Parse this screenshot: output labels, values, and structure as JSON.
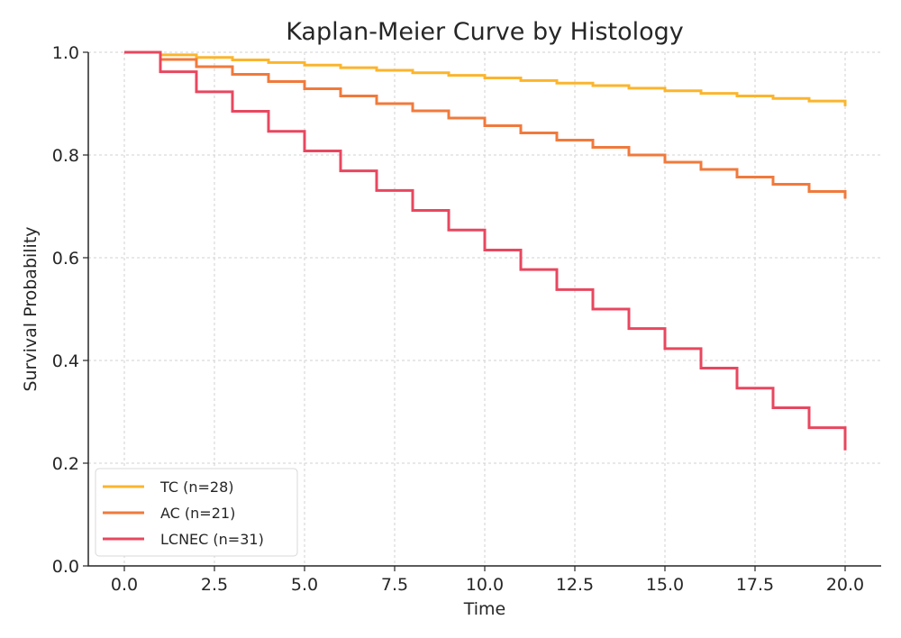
{
  "chart_data": {
    "type": "line",
    "subtype": "step",
    "title": "Kaplan-Meier Curve by Histology",
    "xlabel": "Time",
    "ylabel": "Survival Probability",
    "xlim": [
      -1,
      21
    ],
    "ylim": [
      0,
      1.0
    ],
    "xticks": [
      0,
      2.5,
      5,
      7.5,
      10,
      12.5,
      15,
      17.5,
      20
    ],
    "xtick_labels": [
      "0.0",
      "2.5",
      "5.0",
      "7.5",
      "10.0",
      "12.5",
      "15.0",
      "17.5",
      "20.0"
    ],
    "yticks": [
      0,
      0.2,
      0.4,
      0.6,
      0.8,
      1.0
    ],
    "ytick_labels": [
      "0.0",
      "0.2",
      "0.4",
      "0.6",
      "0.8",
      "1.0"
    ],
    "grid": true,
    "legend_position": "lower-left",
    "x": [
      0,
      1,
      2,
      3,
      4,
      5,
      6,
      7,
      8,
      9,
      10,
      11,
      12,
      13,
      14,
      15,
      16,
      17,
      18,
      19,
      20
    ],
    "series": [
      {
        "name": "TC (n=28)",
        "color": "#fbb52d",
        "values": [
          1.0,
          0.995,
          0.99,
          0.985,
          0.98,
          0.975,
          0.97,
          0.965,
          0.96,
          0.955,
          0.95,
          0.945,
          0.94,
          0.935,
          0.93,
          0.925,
          0.92,
          0.915,
          0.91,
          0.905,
          0.895
        ]
      },
      {
        "name": "AC (n=21)",
        "color": "#f07a3c",
        "values": [
          1.0,
          0.986,
          0.972,
          0.957,
          0.943,
          0.929,
          0.915,
          0.9,
          0.886,
          0.872,
          0.857,
          0.843,
          0.829,
          0.815,
          0.8,
          0.786,
          0.772,
          0.757,
          0.743,
          0.729,
          0.715
        ]
      },
      {
        "name": "LCNEC (n=31)",
        "color": "#e8475f",
        "values": [
          1.0,
          0.962,
          0.923,
          0.885,
          0.846,
          0.808,
          0.769,
          0.731,
          0.692,
          0.654,
          0.615,
          0.577,
          0.538,
          0.5,
          0.462,
          0.423,
          0.385,
          0.346,
          0.308,
          0.269,
          0.225
        ]
      }
    ]
  }
}
